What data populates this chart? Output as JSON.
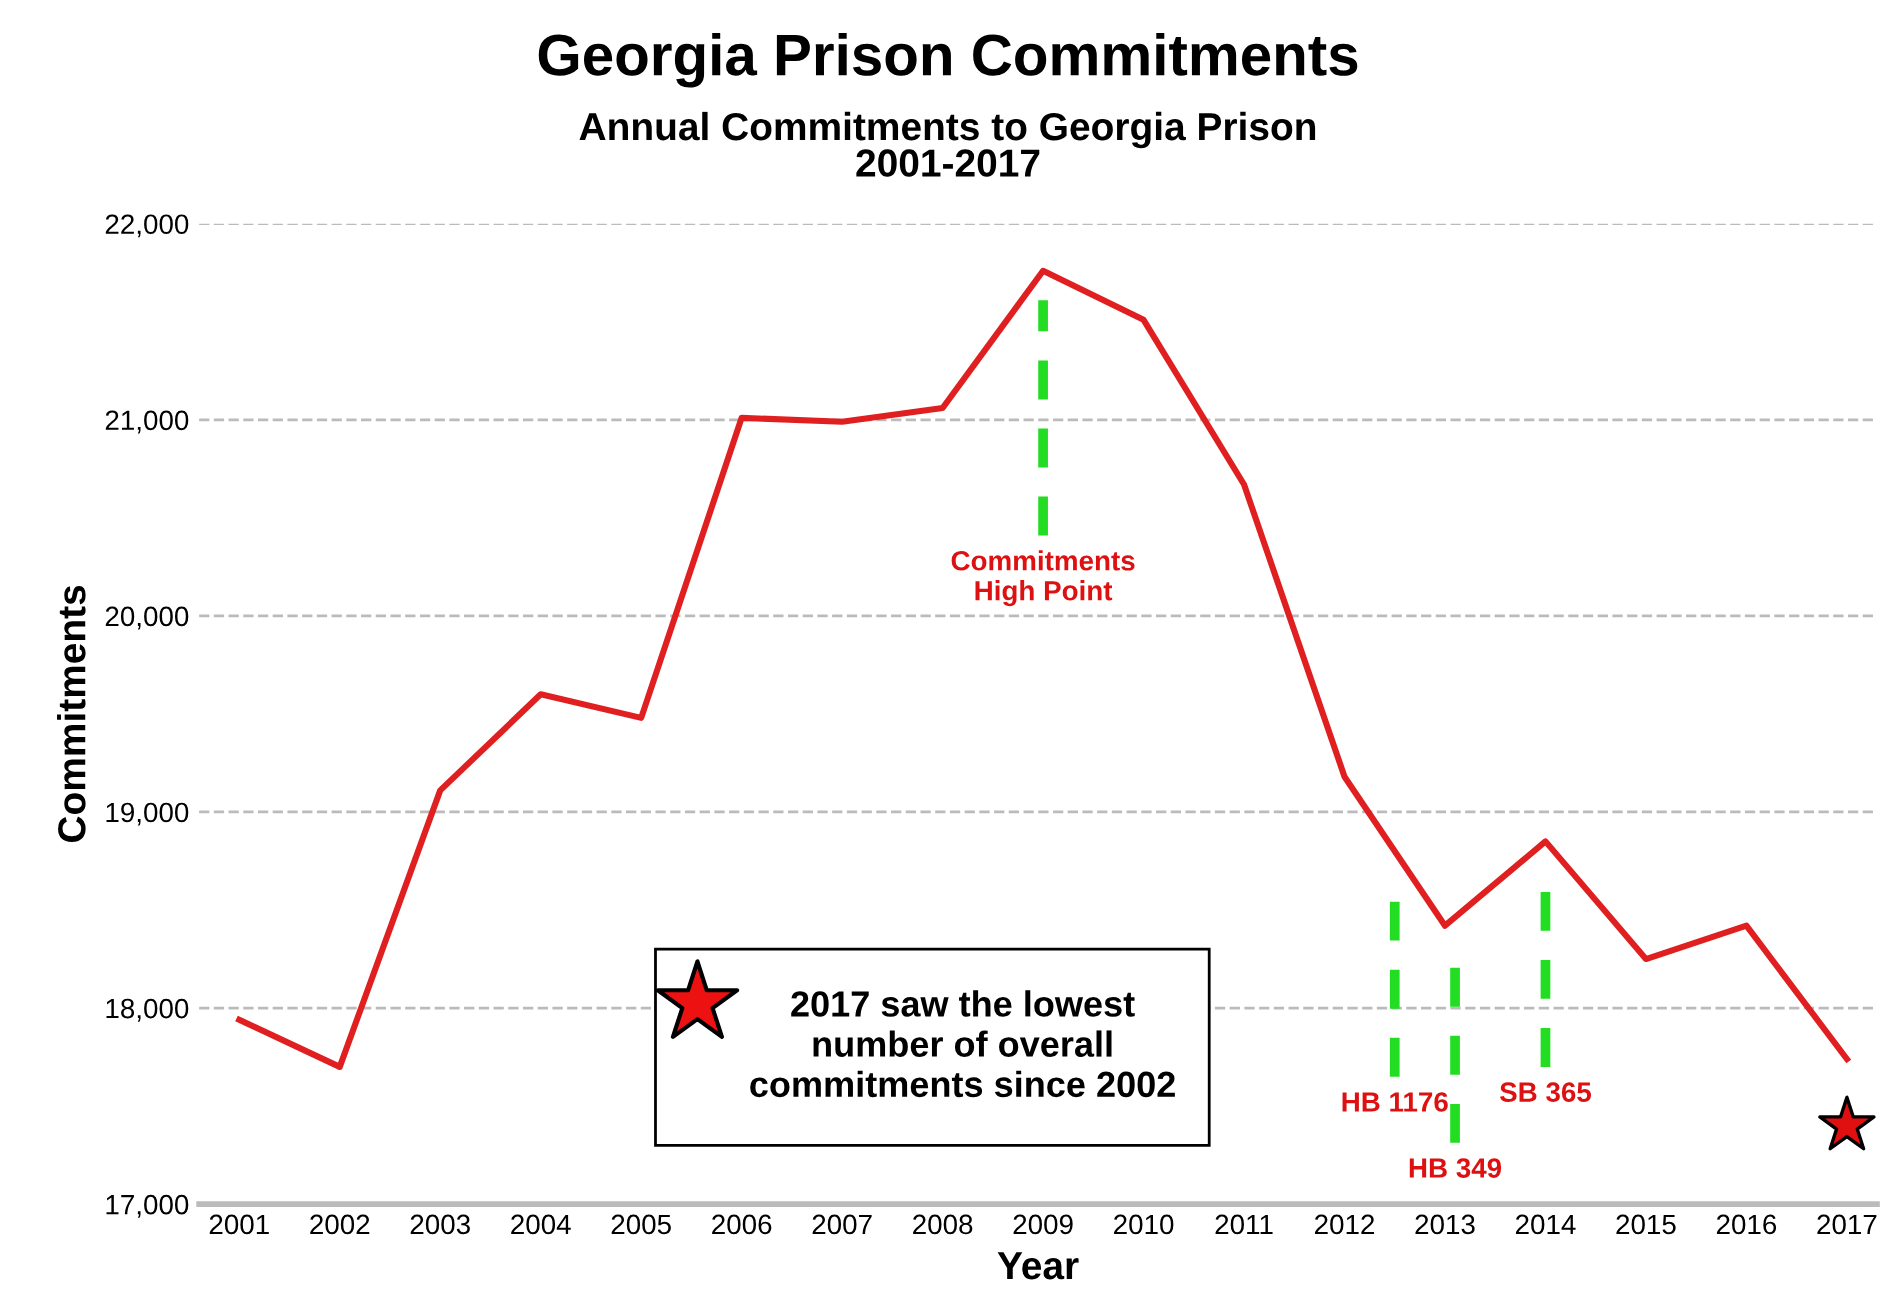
{
  "chart_data": {
    "type": "line",
    "title": "Georgia Prison Commitments",
    "subtitle": "Annual Commitments to Georgia Prison\n2001-2017",
    "xlabel": "Year",
    "ylabel": "Commitments",
    "x": [
      2001,
      2002,
      2003,
      2004,
      2005,
      2006,
      2007,
      2008,
      2009,
      2010,
      2011,
      2012,
      2013,
      2014,
      2015,
      2016,
      2017
    ],
    "series": [
      {
        "color": "#e02020",
        "values": [
          17940,
          17700,
          19110,
          19600,
          19480,
          21010,
          20990,
          21060,
          21760,
          21510,
          20670,
          19180,
          18420,
          18850,
          18250,
          18420,
          17740
        ]
      },
      {
        "type": "scatter",
        "color": "#e01010",
        "marker": "star",
        "x": [
          2017
        ],
        "values": [
          17400
        ]
      }
    ],
    "xlim": [
      2000.6,
      2017.3
    ],
    "ylim": [
      17000,
      22000
    ],
    "xticks": [
      2001,
      2002,
      2003,
      2004,
      2005,
      2006,
      2007,
      2008,
      2009,
      2010,
      2011,
      2012,
      2013,
      2014,
      2015,
      2016,
      2017
    ],
    "yticks": [
      {
        "value": 17000,
        "label": "17,000"
      },
      {
        "value": 18000,
        "label": "18,000"
      },
      {
        "value": 19000,
        "label": "19,000"
      },
      {
        "value": 20000,
        "label": "20,000"
      },
      {
        "value": 21000,
        "label": "21,000"
      },
      {
        "value": 22000,
        "label": "22,000"
      }
    ],
    "grid": "y",
    "legend": false,
    "ref_lines": [
      {
        "axis": "x",
        "value": 2009,
        "label": "Commitments\nHigh Point",
        "color": "#22dd22",
        "line_style": "dashed"
      },
      {
        "axis": "x",
        "value": 2012.5,
        "label": "HB 1176",
        "color": "#22dd22",
        "line_style": "dashed"
      },
      {
        "axis": "x",
        "value": 2013.1,
        "label": "HB 349",
        "color": "#22dd22",
        "line_style": "dashed"
      },
      {
        "axis": "x",
        "value": 2014,
        "label": "SB 365",
        "color": "#22dd22",
        "line_style": "dashed"
      }
    ],
    "annotations": [
      "2017 saw the lowest\nnumber of overall\ncommitments since 2002"
    ]
  }
}
